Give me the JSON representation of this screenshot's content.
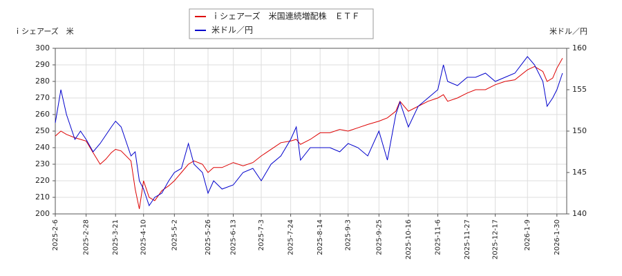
{
  "chart_data": {
    "type": "line",
    "y_label": "ｉシェアーズ　米",
    "y2_label": "米ドル／円",
    "x": [
      "2025-2-6",
      "2025-2-10",
      "2025-2-14",
      "2025-2-20",
      "2025-2-24",
      "2025-2-28",
      "2025-3-5",
      "2025-3-10",
      "2025-3-14",
      "2025-3-18",
      "2025-3-21",
      "2025-3-25",
      "2025-4-1",
      "2025-4-4",
      "2025-4-7",
      "2025-4-10",
      "2025-4-14",
      "2025-4-18",
      "2025-4-23",
      "2025-4-28",
      "2025-5-2",
      "2025-5-7",
      "2025-5-12",
      "2025-5-16",
      "2025-5-22",
      "2025-5-26",
      "2025-5-30",
      "2025-6-5",
      "2025-6-13",
      "2025-6-20",
      "2025-6-27",
      "2025-7-3",
      "2025-7-10",
      "2025-7-17",
      "2025-7-24",
      "2025-7-28",
      "2025-7-31",
      "2025-8-7",
      "2025-8-14",
      "2025-8-21",
      "2025-8-28",
      "2025-9-3",
      "2025-9-10",
      "2025-9-17",
      "2025-9-25",
      "2025-10-1",
      "2025-10-7",
      "2025-10-10",
      "2025-10-16",
      "2025-10-23",
      "2025-10-30",
      "2025-11-6",
      "2025-11-10",
      "2025-11-13",
      "2025-11-20",
      "2025-11-27",
      "2025-12-3",
      "2025-12-10",
      "2025-12-17",
      "2025-12-24",
      "2025-12-31",
      "2026-1-9",
      "2026-1-14",
      "2026-1-20",
      "2026-1-23",
      "2026-1-27",
      "2026-1-30",
      "2026-2-3"
    ],
    "series": [
      {
        "name": "ｉシェアーズ　米国連続増配株　ＥＴＦ",
        "color": "#dd0000",
        "values": [
          247,
          250,
          248,
          246,
          245,
          244,
          237,
          230,
          233,
          237,
          239,
          238,
          232,
          215,
          203,
          220,
          210,
          208,
          214,
          217,
          220,
          225,
          230,
          232,
          230,
          225,
          228,
          228,
          231,
          229,
          231,
          235,
          239,
          243,
          244,
          245,
          242,
          245,
          249,
          249,
          251,
          250,
          252,
          254,
          256,
          258,
          262,
          268,
          262,
          265,
          268,
          270,
          272,
          268,
          270,
          273,
          275,
          275,
          278,
          280,
          281,
          287,
          289,
          286,
          280,
          282,
          288,
          294
        ]
      },
      {
        "name": "米ドル／円",
        "color": "#0000cc",
        "axis": "y2",
        "values": [
          151,
          155,
          152,
          149,
          150,
          149,
          147.5,
          148.5,
          149.5,
          150.5,
          151.2,
          150.5,
          147,
          147.5,
          144,
          143,
          141,
          142,
          142.5,
          144,
          145,
          145.5,
          148.5,
          146,
          145,
          142.5,
          144,
          143,
          143.5,
          145,
          145.5,
          144,
          146,
          147,
          149,
          150.5,
          146.5,
          148,
          148,
          148,
          147.5,
          148.5,
          148,
          147,
          150,
          146.5,
          152,
          153.5,
          150.5,
          153,
          154,
          155,
          158,
          156,
          155.5,
          156.5,
          156.5,
          157,
          156,
          156.5,
          157,
          159,
          158,
          156,
          153,
          154,
          155,
          157
        ]
      }
    ],
    "xlim": [
      "2025-2-6",
      "2026-2-6"
    ],
    "xticks": [
      "2025-2-6",
      "2025-2-28",
      "2025-3-21",
      "2025-4-10",
      "2025-5-2",
      "2025-5-26",
      "2025-6-13",
      "2025-7-3",
      "2025-7-24",
      "2025-8-14",
      "2025-9-3",
      "2025-9-25",
      "2025-10-16",
      "2025-11-6",
      "2025-11-27",
      "2025-12-17",
      "2026-1-9",
      "2026-1-30"
    ],
    "ylim": [
      200,
      300
    ],
    "yticks": [
      200,
      210,
      220,
      230,
      240,
      250,
      260,
      270,
      280,
      290,
      300
    ],
    "y2lim": [
      140,
      160
    ],
    "y2ticks": [
      140,
      145,
      150,
      155,
      160
    ],
    "grid": true
  }
}
